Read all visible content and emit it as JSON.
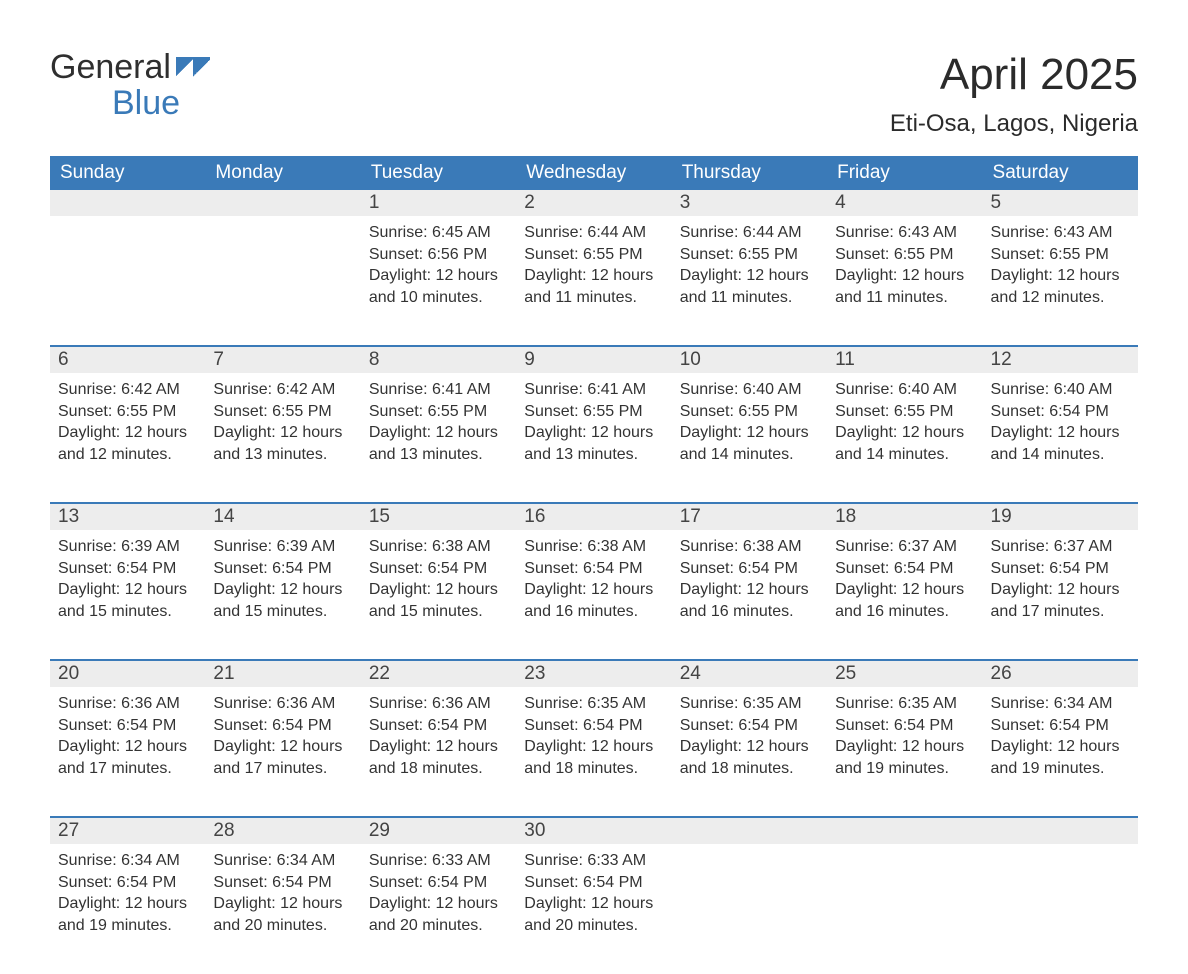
{
  "logo": {
    "text1": "General",
    "text2": "Blue"
  },
  "title": "April 2025",
  "subtitle": "Eti-Osa, Lagos, Nigeria",
  "colors": {
    "header_bg": "#3a7ab8",
    "header_text": "#ffffff",
    "daynum_bg": "#ededed",
    "row_border": "#3a7ab8",
    "body_text": "#333333",
    "logo_blue": "#3a7ab8",
    "background": "#ffffff"
  },
  "typography": {
    "title_fontsize": 44,
    "subtitle_fontsize": 24,
    "header_fontsize": 19,
    "daynum_fontsize": 19,
    "detail_fontsize": 16,
    "font_family": "Arial"
  },
  "day_headers": [
    "Sunday",
    "Monday",
    "Tuesday",
    "Wednesday",
    "Thursday",
    "Friday",
    "Saturday"
  ],
  "labels": {
    "sunrise": "Sunrise:",
    "sunset": "Sunset:",
    "daylight": "Daylight:"
  },
  "weeks": [
    [
      null,
      null,
      {
        "d": "1",
        "sr": "6:45 AM",
        "ss": "6:56 PM",
        "dl": "12 hours and 10 minutes."
      },
      {
        "d": "2",
        "sr": "6:44 AM",
        "ss": "6:55 PM",
        "dl": "12 hours and 11 minutes."
      },
      {
        "d": "3",
        "sr": "6:44 AM",
        "ss": "6:55 PM",
        "dl": "12 hours and 11 minutes."
      },
      {
        "d": "4",
        "sr": "6:43 AM",
        "ss": "6:55 PM",
        "dl": "12 hours and 11 minutes."
      },
      {
        "d": "5",
        "sr": "6:43 AM",
        "ss": "6:55 PM",
        "dl": "12 hours and 12 minutes."
      }
    ],
    [
      {
        "d": "6",
        "sr": "6:42 AM",
        "ss": "6:55 PM",
        "dl": "12 hours and 12 minutes."
      },
      {
        "d": "7",
        "sr": "6:42 AM",
        "ss": "6:55 PM",
        "dl": "12 hours and 13 minutes."
      },
      {
        "d": "8",
        "sr": "6:41 AM",
        "ss": "6:55 PM",
        "dl": "12 hours and 13 minutes."
      },
      {
        "d": "9",
        "sr": "6:41 AM",
        "ss": "6:55 PM",
        "dl": "12 hours and 13 minutes."
      },
      {
        "d": "10",
        "sr": "6:40 AM",
        "ss": "6:55 PM",
        "dl": "12 hours and 14 minutes."
      },
      {
        "d": "11",
        "sr": "6:40 AM",
        "ss": "6:55 PM",
        "dl": "12 hours and 14 minutes."
      },
      {
        "d": "12",
        "sr": "6:40 AM",
        "ss": "6:54 PM",
        "dl": "12 hours and 14 minutes."
      }
    ],
    [
      {
        "d": "13",
        "sr": "6:39 AM",
        "ss": "6:54 PM",
        "dl": "12 hours and 15 minutes."
      },
      {
        "d": "14",
        "sr": "6:39 AM",
        "ss": "6:54 PM",
        "dl": "12 hours and 15 minutes."
      },
      {
        "d": "15",
        "sr": "6:38 AM",
        "ss": "6:54 PM",
        "dl": "12 hours and 15 minutes."
      },
      {
        "d": "16",
        "sr": "6:38 AM",
        "ss": "6:54 PM",
        "dl": "12 hours and 16 minutes."
      },
      {
        "d": "17",
        "sr": "6:38 AM",
        "ss": "6:54 PM",
        "dl": "12 hours and 16 minutes."
      },
      {
        "d": "18",
        "sr": "6:37 AM",
        "ss": "6:54 PM",
        "dl": "12 hours and 16 minutes."
      },
      {
        "d": "19",
        "sr": "6:37 AM",
        "ss": "6:54 PM",
        "dl": "12 hours and 17 minutes."
      }
    ],
    [
      {
        "d": "20",
        "sr": "6:36 AM",
        "ss": "6:54 PM",
        "dl": "12 hours and 17 minutes."
      },
      {
        "d": "21",
        "sr": "6:36 AM",
        "ss": "6:54 PM",
        "dl": "12 hours and 17 minutes."
      },
      {
        "d": "22",
        "sr": "6:36 AM",
        "ss": "6:54 PM",
        "dl": "12 hours and 18 minutes."
      },
      {
        "d": "23",
        "sr": "6:35 AM",
        "ss": "6:54 PM",
        "dl": "12 hours and 18 minutes."
      },
      {
        "d": "24",
        "sr": "6:35 AM",
        "ss": "6:54 PM",
        "dl": "12 hours and 18 minutes."
      },
      {
        "d": "25",
        "sr": "6:35 AM",
        "ss": "6:54 PM",
        "dl": "12 hours and 19 minutes."
      },
      {
        "d": "26",
        "sr": "6:34 AM",
        "ss": "6:54 PM",
        "dl": "12 hours and 19 minutes."
      }
    ],
    [
      {
        "d": "27",
        "sr": "6:34 AM",
        "ss": "6:54 PM",
        "dl": "12 hours and 19 minutes."
      },
      {
        "d": "28",
        "sr": "6:34 AM",
        "ss": "6:54 PM",
        "dl": "12 hours and 20 minutes."
      },
      {
        "d": "29",
        "sr": "6:33 AM",
        "ss": "6:54 PM",
        "dl": "12 hours and 20 minutes."
      },
      {
        "d": "30",
        "sr": "6:33 AM",
        "ss": "6:54 PM",
        "dl": "12 hours and 20 minutes."
      },
      null,
      null,
      null
    ]
  ]
}
